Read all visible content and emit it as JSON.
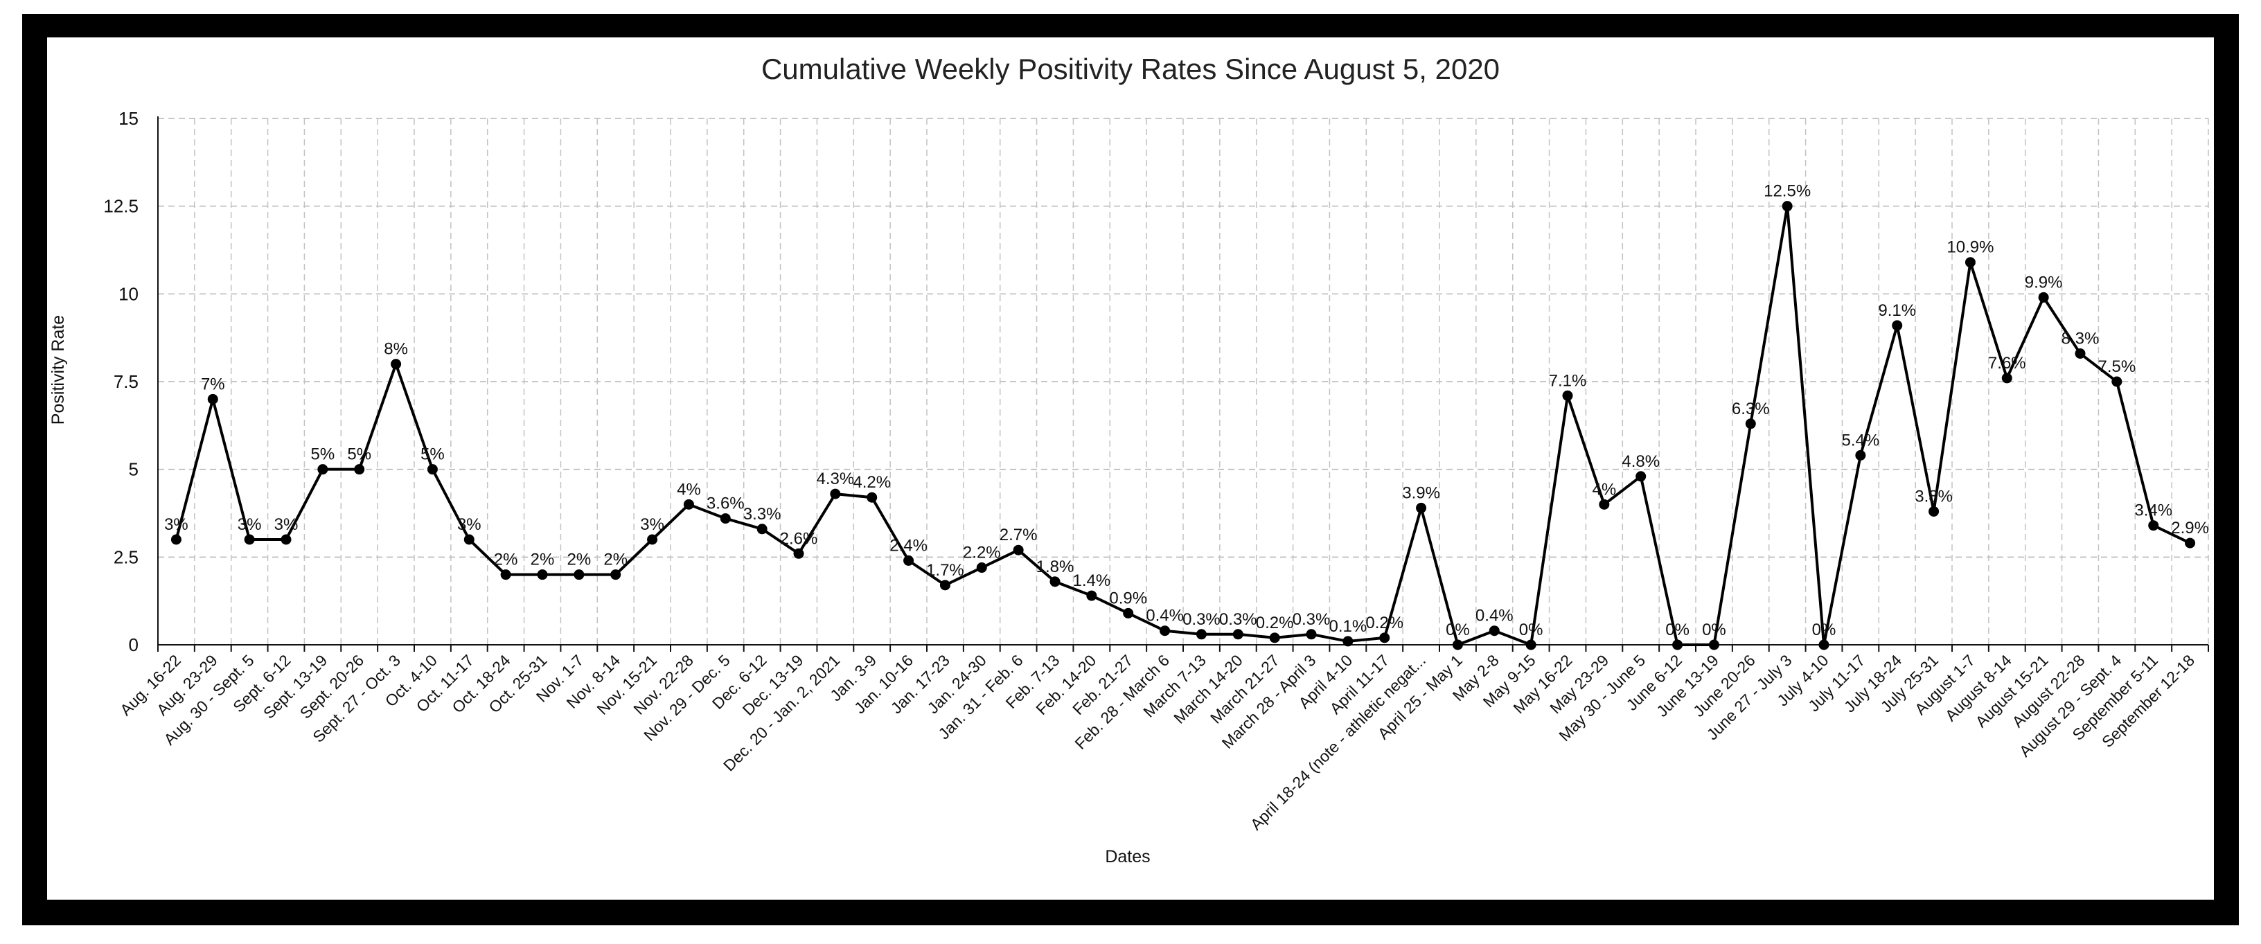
{
  "chart_data": {
    "type": "line",
    "title": "Cumulative Weekly Positivity Rates Since August 5, 2020",
    "xlabel": "Dates",
    "ylabel": "Positivity Rate",
    "ylim": [
      0,
      15
    ],
    "yticks": [
      "0",
      "2.5",
      "5",
      "7.5",
      "10",
      "12.5",
      "15"
    ],
    "grid": true,
    "legend": "none",
    "line_color": "#000000",
    "categories": [
      "Aug. 16-22",
      "Aug. 23-29",
      "Aug. 30 - Sept. 5",
      "Sept. 6-12",
      "Sept. 13-19",
      "Sept. 20-26",
      "Sept. 27 - Oct. 3",
      "Oct. 4-10",
      "Oct. 11-17",
      "Oct. 18-24",
      "Oct. 25-31",
      "Nov. 1-7",
      "Nov. 8-14",
      "Nov. 15-21",
      "Nov. 22-28",
      "Nov. 29 - Dec. 5",
      "Dec. 6-12",
      "Dec. 13-19",
      "Dec. 20 - Jan. 2, 2021",
      "Jan. 3-9",
      "Jan. 10-16",
      "Jan. 17-23",
      "Jan. 24-30",
      "Jan. 31 - Feb. 6",
      "Feb. 7-13",
      "Feb. 14-20",
      "Feb. 21-27",
      "Feb. 28 - March 6",
      "March 7-13",
      "March 14-20",
      "March 21-27",
      "March 28 - April 3",
      "April 4-10",
      "April 11-17",
      "April 18-24 (note - athletic negat...",
      "April 25 - May 1",
      "May 2-8",
      "May 9-15",
      "May 16-22",
      "May 23-29",
      "May 30 - June 5",
      "June 6-12",
      "June 13-19",
      "June 20-26",
      "June 27 - July 3",
      "July 4-10",
      "July 11-17",
      "July 18-24",
      "July 25-31",
      "August 1-7",
      "August 8-14",
      "August 15-21",
      "August 22-28",
      "August 29 - Sept. 4",
      "September 5-11",
      "September 12-18"
    ],
    "values": [
      3,
      7,
      3,
      3,
      5,
      5,
      8,
      5,
      3,
      2,
      2,
      2,
      2,
      3,
      4,
      3.6,
      3.3,
      2.6,
      4.3,
      4.2,
      2.4,
      1.7,
      2.2,
      2.7,
      1.8,
      1.4,
      0.9,
      0.4,
      0.3,
      0.3,
      0.2,
      0.3,
      0.1,
      0.2,
      3.9,
      0,
      0.4,
      0,
      7.1,
      4,
      4.8,
      0,
      0,
      6.3,
      12.5,
      0,
      5.4,
      9.1,
      3.8,
      10.9,
      7.6,
      9.9,
      8.3,
      7.5,
      3.4,
      2.9
    ],
    "data_labels": [
      "3%",
      "7%",
      "3%",
      "3%",
      "5%",
      "5%",
      "8%",
      "5%",
      "3%",
      "2%",
      "2%",
      "2%",
      "2%",
      "3%",
      "4%",
      "3.6%",
      "3.3%",
      "2.6%",
      "4.3%",
      "4.2%",
      "2.4%",
      "1.7%",
      "2.2%",
      "2.7%",
      "1.8%",
      "1.4%",
      "0.9%",
      "0.4%",
      "0.3%",
      "0.3%",
      "0.2%",
      "0.3%",
      "0.1%",
      "0.2%",
      "3.9%",
      "0%",
      "0.4%",
      "0%",
      "7.1%",
      "4%",
      "4.8%",
      "0%",
      "0%",
      "6.3%",
      "12.5%",
      "0%",
      "5.4%",
      "9.1%",
      "3.8%",
      "10.9%",
      "7.6%",
      "9.9%",
      "8.3%",
      "7.5%",
      "3.4%",
      "2.9%"
    ]
  }
}
